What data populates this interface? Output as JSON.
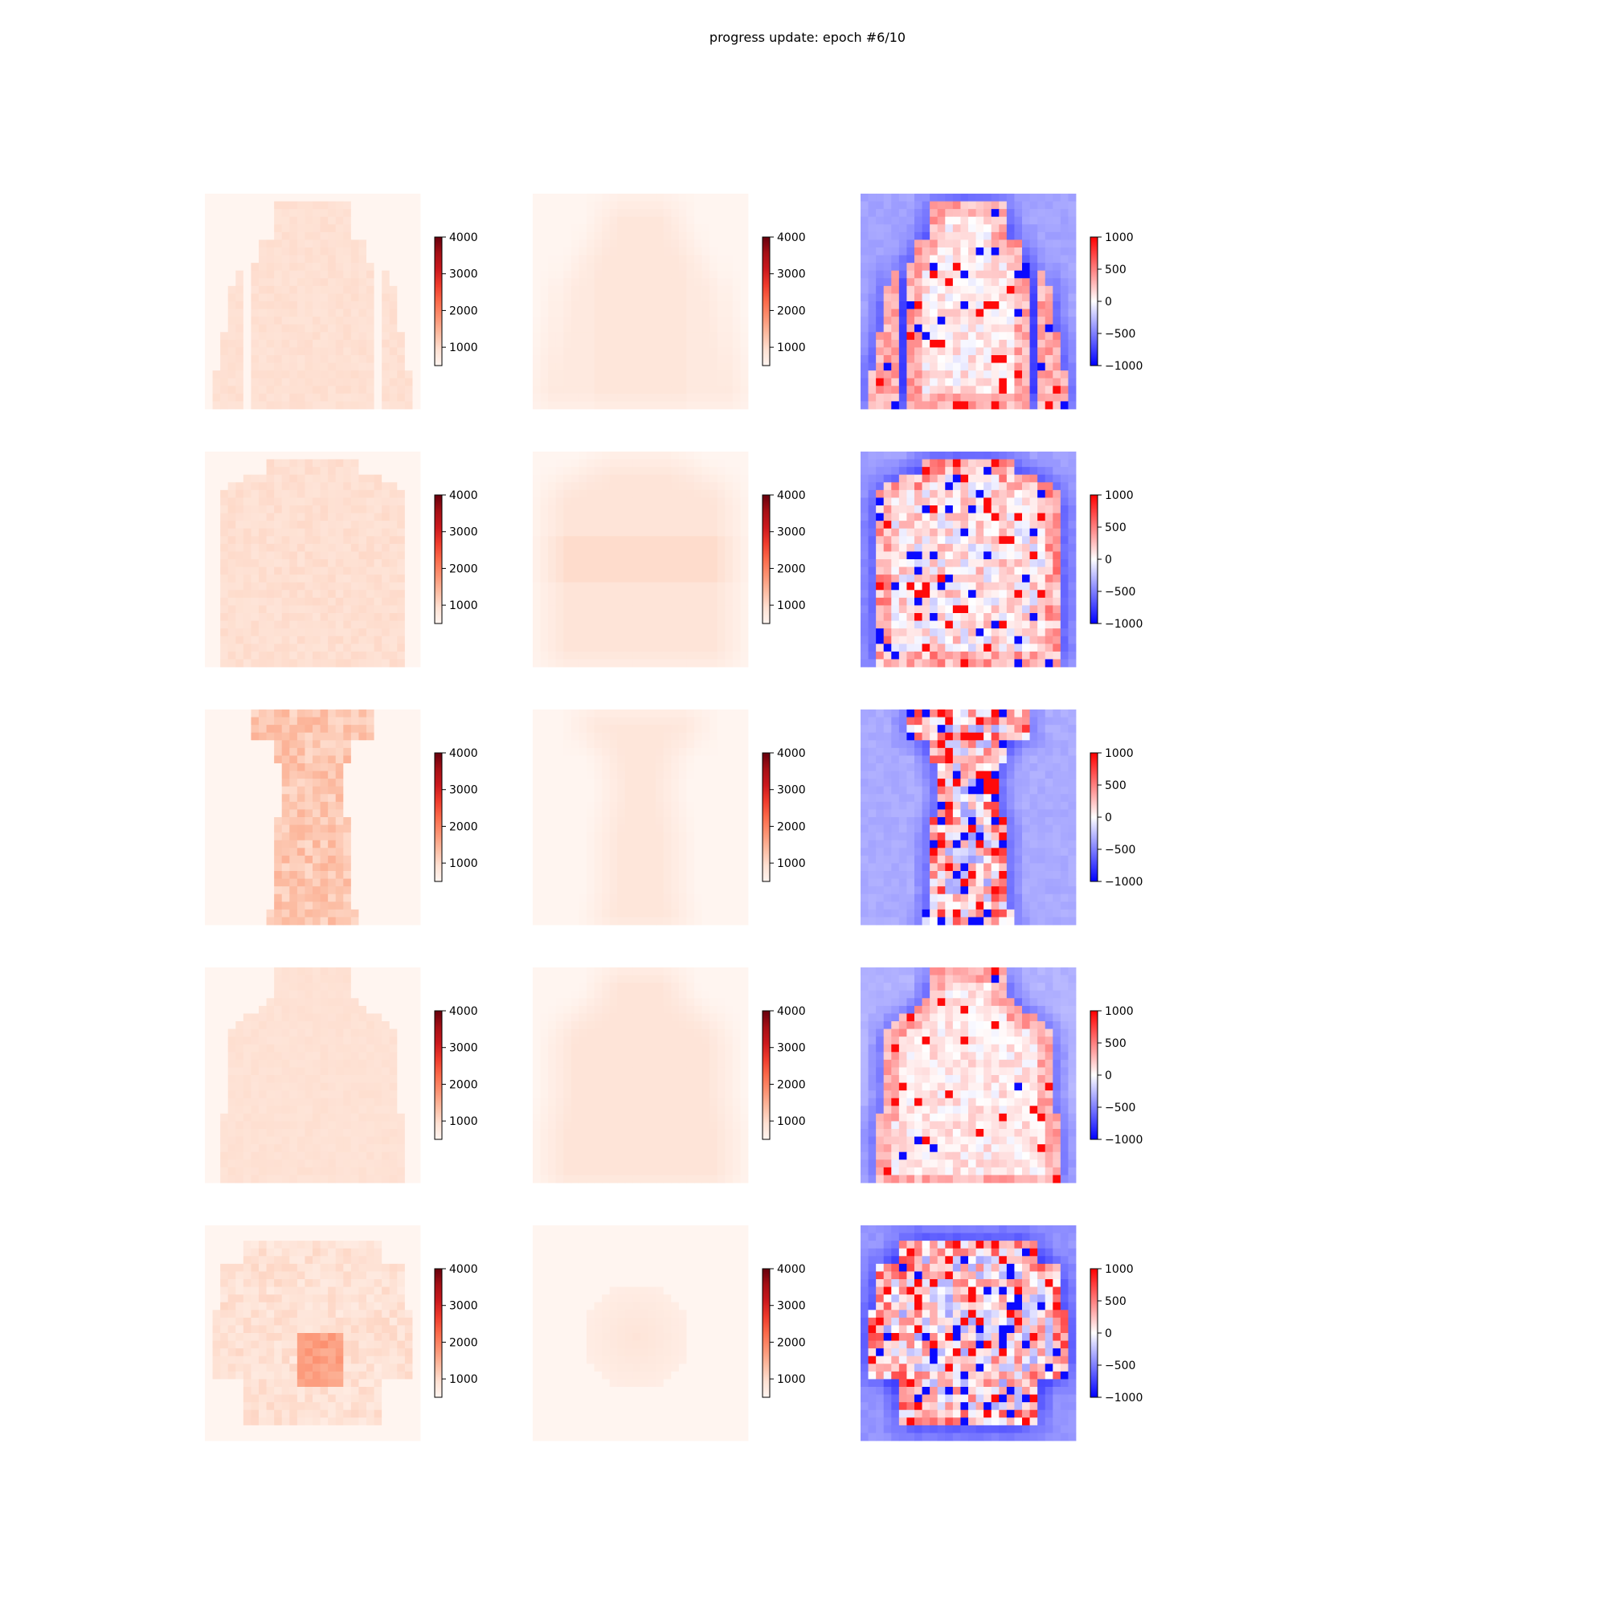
{
  "figure": {
    "title": "progress update: epoch #6/10"
  },
  "chart_data": {
    "type": "heatmap",
    "layout": "5 rows x 3 columns of 28x28 image panels, each with a colorbar",
    "grid": false,
    "axes": "off",
    "columns": [
      {
        "cmap": "Reds",
        "colorbar_range": [
          500,
          4000
        ],
        "colorbar_ticks": [
          "1000",
          "2000",
          "3000",
          "4000"
        ],
        "colorbar_tick_values": [
          1000,
          2000,
          3000,
          4000
        ]
      },
      {
        "cmap": "Reds",
        "colorbar_range": [
          500,
          4000
        ],
        "colorbar_ticks": [
          "1000",
          "2000",
          "3000",
          "4000"
        ],
        "colorbar_tick_values": [
          1000,
          2000,
          3000,
          4000
        ]
      },
      {
        "cmap": "bwr",
        "colorbar_range": [
          -1000,
          1000
        ],
        "colorbar_ticks": [
          "−1000",
          "−500",
          "0",
          "500",
          "1000"
        ],
        "colorbar_tick_values": [
          -1000,
          -500,
          0,
          500,
          1000
        ]
      }
    ],
    "rows": [
      {
        "subject": "hoodie"
      },
      {
        "subject": "sweater"
      },
      {
        "subject": "dress"
      },
      {
        "subject": "coat"
      },
      {
        "subject": "shirt"
      }
    ],
    "image_resolution": [
      28,
      28
    ],
    "colors": {
      "reds_low": "#fff5f0",
      "reds_high": "#67000d",
      "bwr_low": "#0000ff",
      "bwr_mid": "#ffffff",
      "bwr_high": "#ff0000"
    }
  }
}
